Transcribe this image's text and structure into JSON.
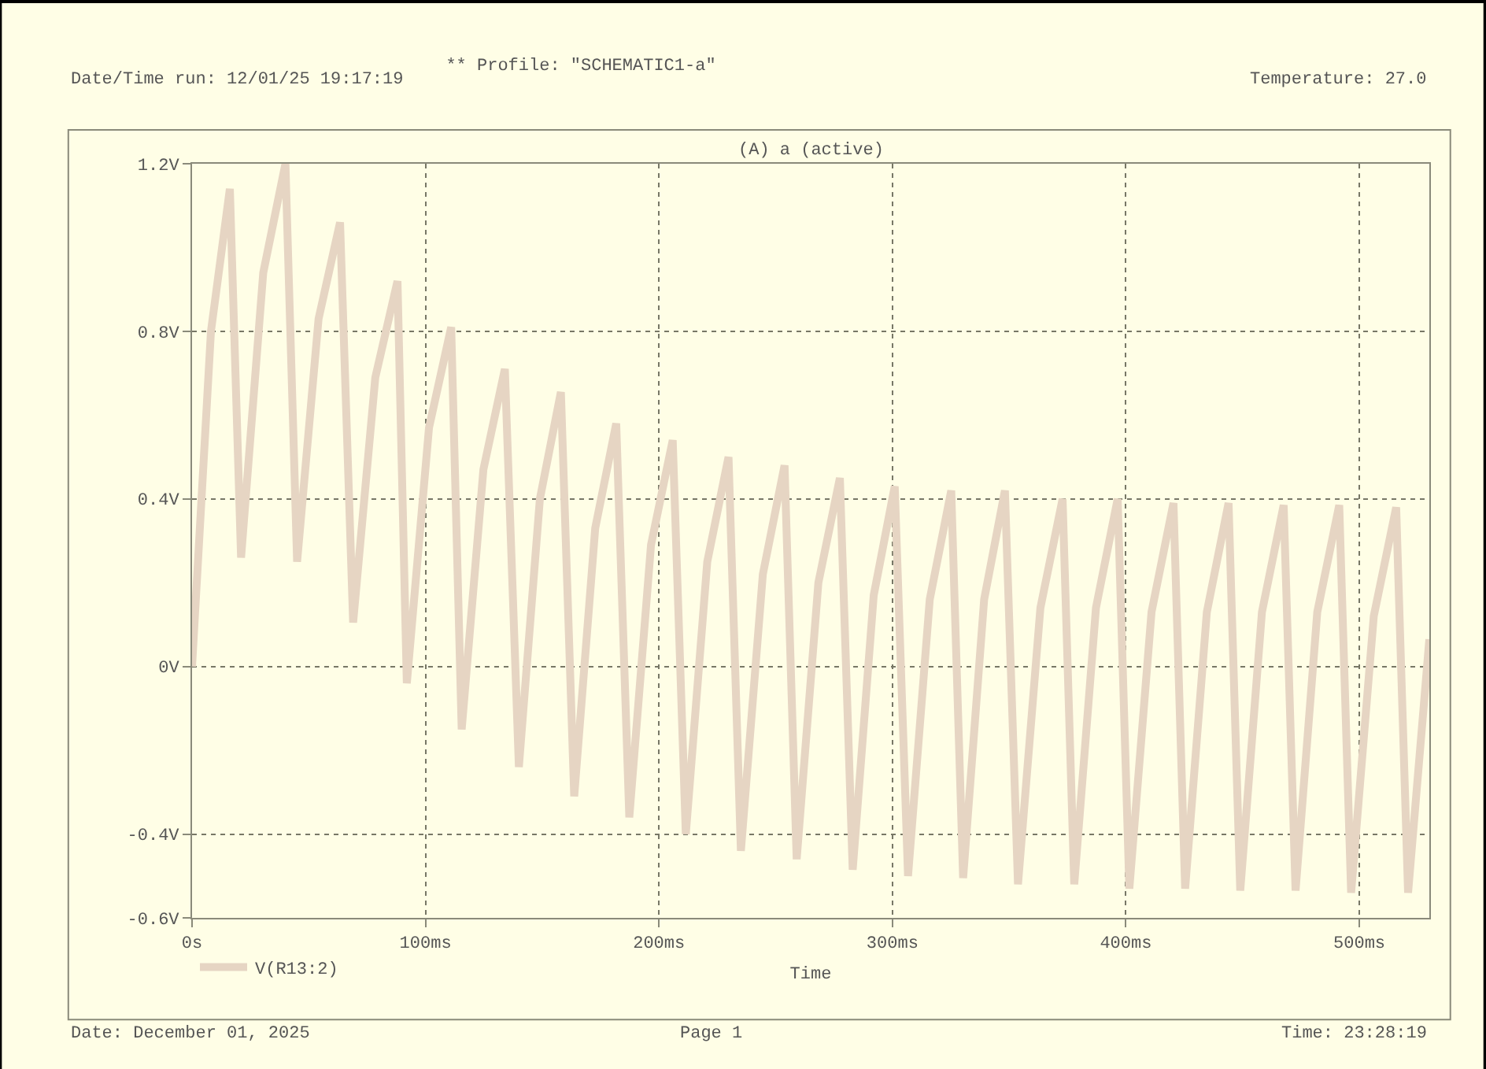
{
  "chart_data": {
    "type": "line",
    "title": "** Profile: \"SCHEMATIC1-a\"",
    "subtitle": "(A) a (active)",
    "xlabel": "Time",
    "annotations": [
      "Date/Time run: 12/01/25 19:17:19",
      "Temperature: 27.0",
      "Date: December 01, 2025",
      "Page 1",
      "Time: 23:28:19"
    ],
    "xlim": [
      0,
      530
    ],
    "ylim": [
      -0.6,
      1.2
    ],
    "xticks": [
      {
        "value": 0,
        "label": "0s"
      },
      {
        "value": 100,
        "label": "100ms"
      },
      {
        "value": 200,
        "label": "200ms"
      },
      {
        "value": 300,
        "label": "300ms"
      },
      {
        "value": 400,
        "label": "400ms"
      },
      {
        "value": 500,
        "label": "500ms"
      }
    ],
    "yticks": [
      {
        "value": 1.2,
        "label": "1.2V"
      },
      {
        "value": 0.8,
        "label": "0.8V"
      },
      {
        "value": 0.4,
        "label": "0.4V"
      },
      {
        "value": 0,
        "label": "0V"
      },
      {
        "value": -0.4,
        "label": "-0.4V"
      },
      {
        "value": -0.6,
        "label": "-0.6V"
      }
    ],
    "grid": true,
    "legend": "bottom left",
    "marker": "none",
    "line_style": "solid",
    "series": [
      {
        "name": "V(R13:2)",
        "color": "#e6d5c3",
        "x": [
          0,
          8.1,
          16.2,
          21,
          30.5,
          40,
          45,
          54.2,
          63.4,
          69,
          78.5,
          88,
          92,
          101.5,
          111,
          115.5,
          124.8,
          134,
          140,
          149,
          158,
          163.7,
          172.7,
          181.7,
          187.3,
          196.6,
          205.9,
          211.5,
          220.7,
          229.8,
          235.1,
          244.5,
          253.8,
          259,
          268.3,
          277.5,
          283,
          292,
          301,
          306.7,
          316,
          325.2,
          330.3,
          339.3,
          348.2,
          353.8,
          363.4,
          372.9,
          377.9,
          387.2,
          396.5,
          401.5,
          411,
          420.4,
          425.4,
          434.7,
          444,
          449,
          458.3,
          467.6,
          472.7,
          482,
          491.4,
          496.5,
          506.2,
          515.8,
          520.9,
          530
        ],
        "values": [
          0,
          0.8,
          1.14,
          0.26,
          0.94,
          1.2,
          0.25,
          0.83,
          1.06,
          0.105,
          0.69,
          0.92,
          -0.04,
          0.57,
          0.81,
          -0.15,
          0.47,
          0.71,
          -0.24,
          0.4,
          0.655,
          -0.31,
          0.33,
          0.58,
          -0.36,
          0.29,
          0.54,
          -0.4,
          0.25,
          0.5,
          -0.44,
          0.22,
          0.48,
          -0.46,
          0.2,
          0.45,
          -0.485,
          0.17,
          0.43,
          -0.5,
          0.16,
          0.42,
          -0.505,
          0.16,
          0.42,
          -0.52,
          0.14,
          0.4,
          -0.52,
          0.14,
          0.4,
          -0.53,
          0.13,
          0.39,
          -0.53,
          0.13,
          0.39,
          -0.535,
          0.13,
          0.385,
          -0.535,
          0.13,
          0.385,
          -0.54,
          0.12,
          0.38,
          -0.54,
          0.065
        ]
      }
    ]
  }
}
